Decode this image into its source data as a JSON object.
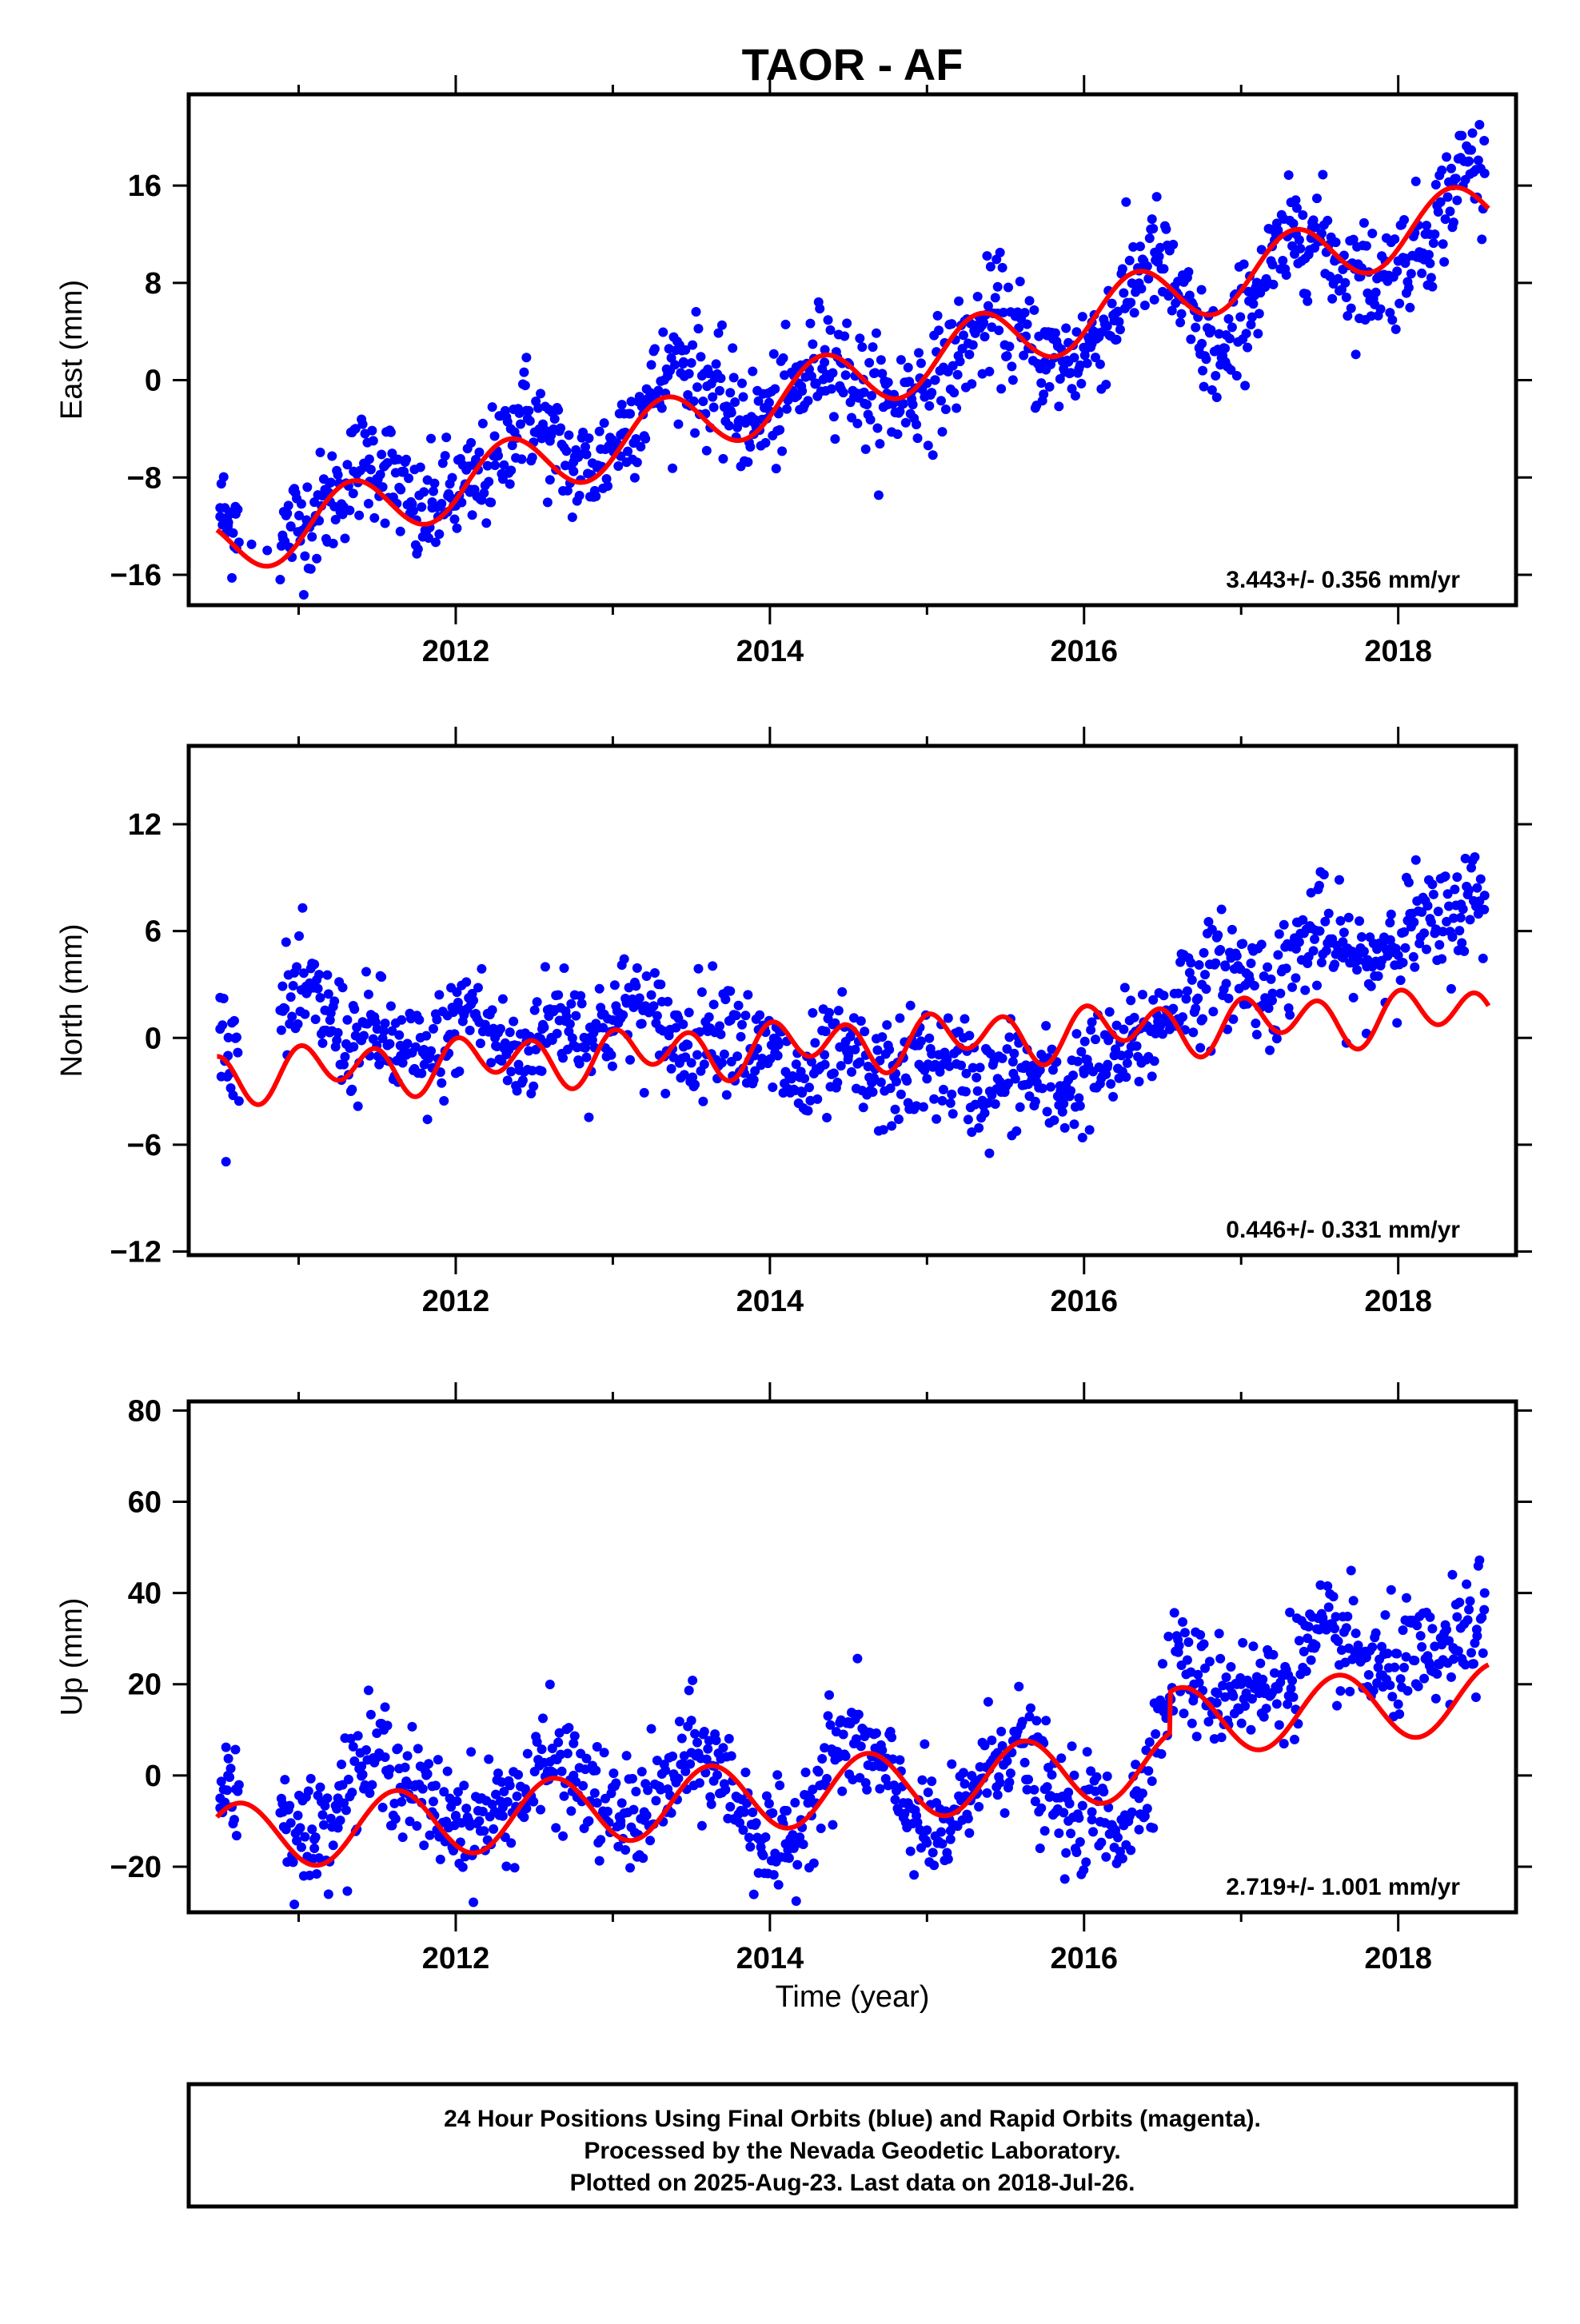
{
  "title": "TAOR - AF",
  "xlabel": "Time (year)",
  "footer": [
    "24 Hour Positions Using Final Orbits (blue) and Rapid Orbits (magenta).",
    "Processed by the Nevada Geodetic Laboratory.",
    "Plotted on 2025-Aug-23. Last data on 2018-Jul-26."
  ],
  "colors": {
    "data": "#0000ff",
    "model": "#ff0000",
    "frame": "#000000"
  },
  "chart_data": [
    {
      "type": "scatter",
      "ylabel": "East (mm)",
      "rate_text": "3.443+/- 0.356 mm/yr",
      "xlim": [
        2010.3,
        2018.75
      ],
      "ylim": [
        -18.5,
        23.5
      ],
      "xticks": [
        2012,
        2014,
        2016,
        2018
      ],
      "yticks": [
        -16,
        -8,
        0,
        8,
        16
      ],
      "series": [
        {
          "kind": "observations",
          "x": [
            2010.5,
            2010.55,
            2010.6,
            2010.7,
            2010.8,
            2010.9,
            2010.95,
            2011.05,
            2011.2,
            2011.35,
            2011.45,
            2011.55,
            2011.65,
            2011.75,
            2011.85,
            2011.95,
            2012.1,
            2012.25,
            2012.35,
            2012.45,
            2012.6,
            2012.75,
            2012.9,
            2013.05,
            2013.2,
            2013.35,
            2013.45,
            2013.6,
            2013.75,
            2013.9,
            2014.05,
            2014.2,
            2014.35,
            2014.45,
            2014.6,
            2014.75,
            2014.9,
            2015.05,
            2015.2,
            2015.35,
            2015.45,
            2015.6,
            2015.75,
            2015.9,
            2016.05,
            2016.2,
            2016.35,
            2016.45,
            2016.6,
            2016.75,
            2016.9,
            2017.05,
            2017.2,
            2017.35,
            2017.45,
            2017.6,
            2017.75,
            2017.9,
            2018.05,
            2018.2,
            2018.35,
            2018.45,
            2018.55
          ],
          "y": [
            -10.5,
            -12.0,
            -11.0,
            -13.5,
            -14.0,
            -13.0,
            -12.0,
            -11.5,
            -10.0,
            -7.5,
            -6.5,
            -7.0,
            -9.0,
            -11.5,
            -10.5,
            -9.5,
            -9.0,
            -7.0,
            -4.0,
            -2.5,
            -5.0,
            -7.5,
            -7.0,
            -4.5,
            -2.0,
            0.5,
            1.5,
            -0.5,
            -2.5,
            -3.5,
            -2.5,
            -0.5,
            2.5,
            1.5,
            -1.0,
            -2.0,
            -1.0,
            0.0,
            2.0,
            4.5,
            5.5,
            3.5,
            1.5,
            1.5,
            3.0,
            5.5,
            9.0,
            10.5,
            7.0,
            3.0,
            1.5,
            6.5,
            9.5,
            12.0,
            12.5,
            10.0,
            8.5,
            8.5,
            10.0,
            12.0,
            16.0,
            18.0,
            17.0
          ]
        },
        {
          "kind": "model",
          "offset": 0.0,
          "trend": 3.443,
          "annual_amp": 2.6,
          "annual_phase": 2011.33
        }
      ]
    },
    {
      "type": "scatter",
      "ylabel": "North (mm)",
      "rate_text": "0.446+/- 0.331 mm/yr",
      "xlim": [
        2010.3,
        2018.75
      ],
      "ylim": [
        -12.2,
        16.4
      ],
      "xticks": [
        2012,
        2014,
        2016,
        2018
      ],
      "yticks": [
        -12,
        -6,
        0,
        6,
        12
      ],
      "series": [
        {
          "kind": "observations",
          "x": [
            2010.5,
            2010.55,
            2010.6,
            2010.9,
            2011.05,
            2011.2,
            2011.35,
            2011.5,
            2011.65,
            2011.8,
            2011.95,
            2012.1,
            2012.25,
            2012.4,
            2012.55,
            2012.7,
            2012.85,
            2013.0,
            2013.15,
            2013.3,
            2013.45,
            2013.6,
            2013.75,
            2013.9,
            2014.05,
            2014.2,
            2014.35,
            2014.5,
            2014.65,
            2014.8,
            2014.95,
            2015.1,
            2015.25,
            2015.4,
            2015.55,
            2015.7,
            2015.85,
            2016.0,
            2016.15,
            2016.3,
            2016.45,
            2016.6,
            2016.75,
            2016.9,
            2017.05,
            2017.2,
            2017.35,
            2017.5,
            2017.65,
            2017.8,
            2017.95,
            2018.1,
            2018.25,
            2018.4,
            2018.55
          ],
          "y": [
            0.5,
            -1.0,
            0.0,
            1.5,
            2.5,
            1.0,
            -0.5,
            0.5,
            -1.0,
            -1.5,
            0.0,
            2.0,
            0.0,
            -1.5,
            0.5,
            1.5,
            0.0,
            1.0,
            2.0,
            0.5,
            -0.5,
            0.5,
            1.0,
            -1.0,
            -1.0,
            -3.0,
            -1.5,
            -1.0,
            -2.5,
            -2.0,
            -1.5,
            -1.5,
            -2.0,
            -3.0,
            -2.0,
            -2.5,
            -3.0,
            -2.0,
            -1.5,
            -0.5,
            0.5,
            2.5,
            3.0,
            4.0,
            3.5,
            2.5,
            5.0,
            6.0,
            4.5,
            4.0,
            5.5,
            6.5,
            6.0,
            7.5,
            8.0
          ]
        },
        {
          "kind": "model",
          "offset": -0.3,
          "trend": 0.446,
          "annual_amp": 0.6,
          "annual_phase": 2011.2,
          "semiannual_amp": 1.2,
          "semiannual_phase": 2011.0
        }
      ]
    },
    {
      "type": "scatter",
      "ylabel": "Up (mm)",
      "rate_text": "2.719+/- 1.001 mm/yr",
      "xlim": [
        2010.3,
        2018.75
      ],
      "ylim": [
        -30,
        82
      ],
      "xticks": [
        2012,
        2014,
        2016,
        2018
      ],
      "yticks": [
        -20,
        0,
        20,
        40,
        60,
        80
      ],
      "series": [
        {
          "kind": "observations",
          "x": [
            2010.5,
            2010.55,
            2010.6,
            2010.9,
            2011.0,
            2011.1,
            2011.25,
            2011.4,
            2011.55,
            2011.7,
            2011.85,
            2012.0,
            2012.15,
            2012.3,
            2012.45,
            2012.6,
            2012.75,
            2012.9,
            2013.05,
            2013.2,
            2013.35,
            2013.5,
            2013.65,
            2013.8,
            2013.95,
            2014.1,
            2014.25,
            2014.4,
            2014.55,
            2014.7,
            2014.85,
            2015.0,
            2015.15,
            2015.3,
            2015.45,
            2015.6,
            2015.75,
            2015.9,
            2016.05,
            2016.2,
            2016.35,
            2016.5,
            2016.6,
            2016.7,
            2016.85,
            2017.0,
            2017.15,
            2017.3,
            2017.45,
            2017.6,
            2017.75,
            2017.9,
            2018.05,
            2018.2,
            2018.35,
            2018.5,
            2018.55
          ],
          "y": [
            -5,
            0,
            -3,
            -8,
            -12,
            -14,
            -5,
            2,
            4,
            -2,
            -8,
            -9,
            -10,
            -7,
            -4,
            3,
            0,
            -6,
            -10,
            -8,
            -3,
            5,
            2,
            -5,
            -14,
            -18,
            -5,
            5,
            8,
            2,
            -6,
            -12,
            -14,
            -2,
            5,
            7,
            -3,
            -10,
            -8,
            -12,
            -5,
            15,
            27,
            20,
            18,
            20,
            18,
            22,
            28,
            30,
            26,
            22,
            26,
            24,
            28,
            32,
            40
          ]
        },
        {
          "kind": "model",
          "offset": -3.0,
          "trend": 2.719,
          "annual_amp": 7.5,
          "annual_phase": 2011.62,
          "step_year": 2016.55,
          "step_size": 9.0
        }
      ]
    }
  ]
}
